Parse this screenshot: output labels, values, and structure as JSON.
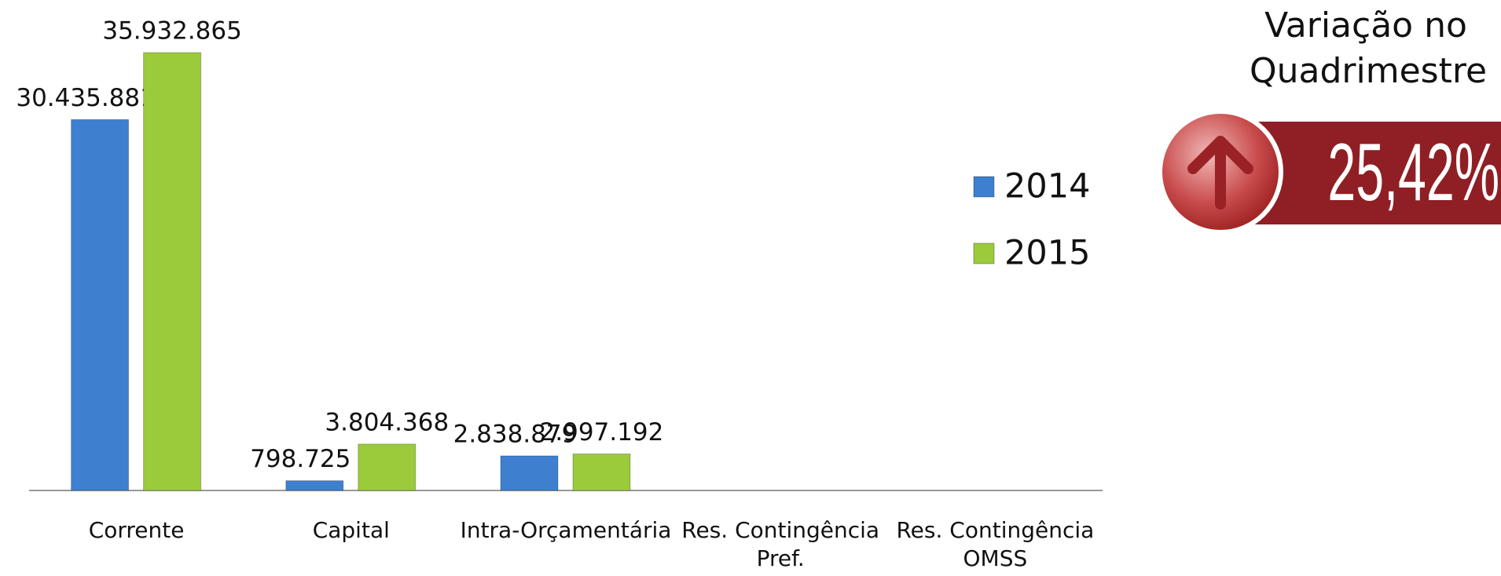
{
  "chart_data": {
    "type": "bar",
    "categories": [
      "Corrente",
      "Capital",
      "Intra-Orçamentária",
      "Res. Contingência Pref.",
      "Res. Contingência OMSS"
    ],
    "series": [
      {
        "name": "2014",
        "color": "#3f7fcf",
        "values": [
          30435881,
          798725,
          2838879,
          null,
          null
        ],
        "value_labels": [
          "30.435.881",
          "798.725",
          "2.838.879",
          null,
          null
        ]
      },
      {
        "name": "2015",
        "color": "#9bcb3b",
        "values": [
          35932865,
          3804368,
          2997192,
          null,
          null
        ],
        "value_labels": [
          "35.932.865",
          "3.804.368",
          "2.997.192",
          null,
          null
        ]
      }
    ],
    "legend": "right"
  },
  "variation": {
    "title": "Variação no Quadrimestre",
    "value": "25,42%",
    "direction": "up"
  }
}
